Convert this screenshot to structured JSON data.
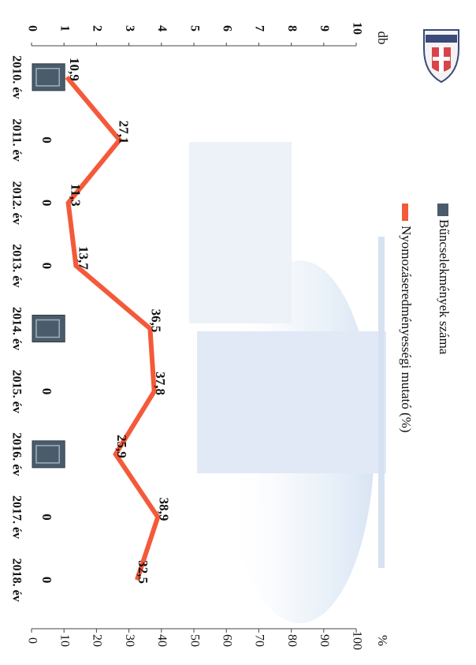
{
  "chart_data": {
    "type": "bar+line",
    "orientation": "rotated 90° clockwise (categories run top to bottom)",
    "categories": [
      "2010. év",
      "2011. év",
      "2012. év",
      "2013. év",
      "2014. év",
      "2015. év",
      "2016. év",
      "2017. év",
      "2018. év"
    ],
    "series": [
      {
        "name": "Bűncselekmények száma",
        "kind": "bar",
        "axis": "left",
        "color": "#4a5c6b",
        "values": [
          1,
          0,
          0,
          0,
          1,
          0,
          1,
          0,
          0
        ],
        "labels": [
          "",
          "0",
          "0",
          "0",
          "",
          "0",
          "",
          "0",
          "0"
        ]
      },
      {
        "name": "Nyomozáseredményességi mutató (%)",
        "kind": "line",
        "axis": "right",
        "color": "#f45a3a",
        "values": [
          10.9,
          27.1,
          11.3,
          13.7,
          36.5,
          37.8,
          25.9,
          38.9,
          32.5
        ],
        "labels": [
          "10,9",
          "27,1",
          "11,3",
          "13,7",
          "36,5",
          "37,8",
          "25,9",
          "38,9",
          "32,5"
        ]
      }
    ],
    "left_axis": {
      "unit": "db",
      "ticks": [
        "0",
        "1",
        "2",
        "3",
        "4",
        "5",
        "6",
        "7",
        "8",
        "9",
        "10"
      ],
      "ylim": [
        0,
        10
      ]
    },
    "right_axis": {
      "unit": "%",
      "ticks": [
        "0",
        "10",
        "20",
        "30",
        "40",
        "50",
        "60",
        "70",
        "80",
        "90",
        "100"
      ],
      "ylim": [
        0,
        100
      ]
    },
    "legend_placement": "top",
    "grid": false
  }
}
